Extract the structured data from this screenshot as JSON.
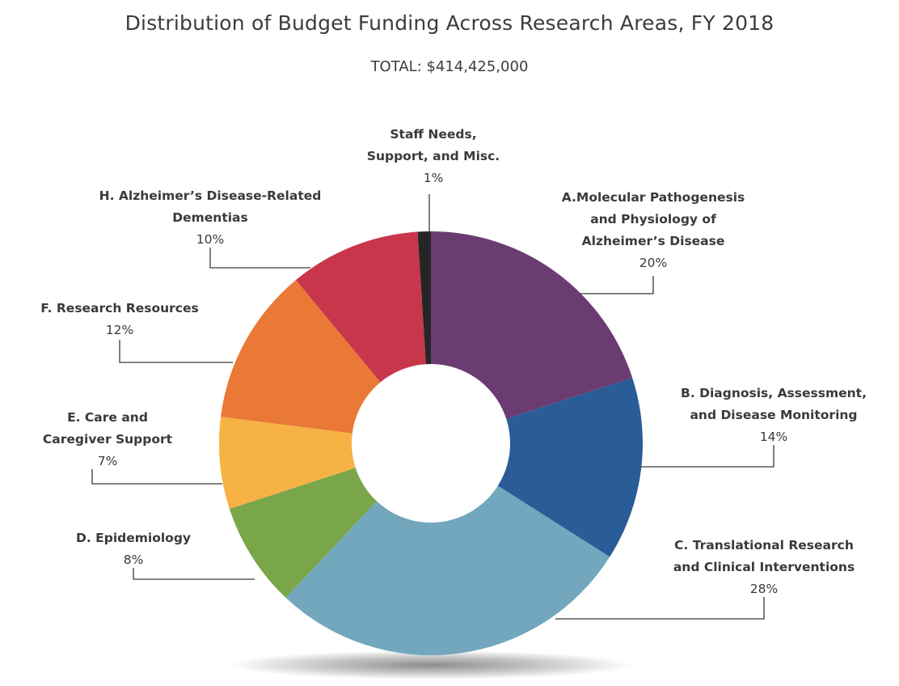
{
  "chart_data": {
    "type": "pie",
    "donut": true,
    "title": "Distribution of Budget Funding Across Research Areas, FY 2018",
    "subtitle": "TOTAL: $414,425,000",
    "slices": [
      {
        "key": "A",
        "label_lines": [
          "A.Molecular Pathogenesis",
          "and Physiology of",
          "Alzheimer’s Disease"
        ],
        "value": 20,
        "display": "20%",
        "color": "#6b3c72"
      },
      {
        "key": "B",
        "label_lines": [
          "B. Diagnosis, Assessment,",
          "and Disease Monitoring"
        ],
        "value": 14,
        "display": "14%",
        "color": "#2a5c97"
      },
      {
        "key": "C",
        "label_lines": [
          "C. Translational Research",
          "and Clinical Interventions"
        ],
        "value": 28,
        "display": "28%",
        "color": "#72a7bd"
      },
      {
        "key": "D",
        "label_lines": [
          "D. Epidemiology"
        ],
        "value": 8,
        "display": "8%",
        "color": "#7aa64a"
      },
      {
        "key": "E",
        "label_lines": [
          "E. Care and",
          "Caregiver Support"
        ],
        "value": 7,
        "display": "7%",
        "color": "#f6b245"
      },
      {
        "key": "F",
        "label_lines": [
          "F. Research Resources"
        ],
        "value": 12,
        "display": "12%",
        "color": "#ea7836"
      },
      {
        "key": "H",
        "label_lines": [
          "H. Alzheimer’s Disease-Related",
          "Dementias"
        ],
        "value": 10,
        "display": "10%",
        "color": "#c8364b"
      },
      {
        "key": "S",
        "label_lines": [
          "Staff Needs,",
          "Support, and Misc."
        ],
        "value": 1,
        "display": "1%",
        "color": "#262626"
      }
    ]
  }
}
